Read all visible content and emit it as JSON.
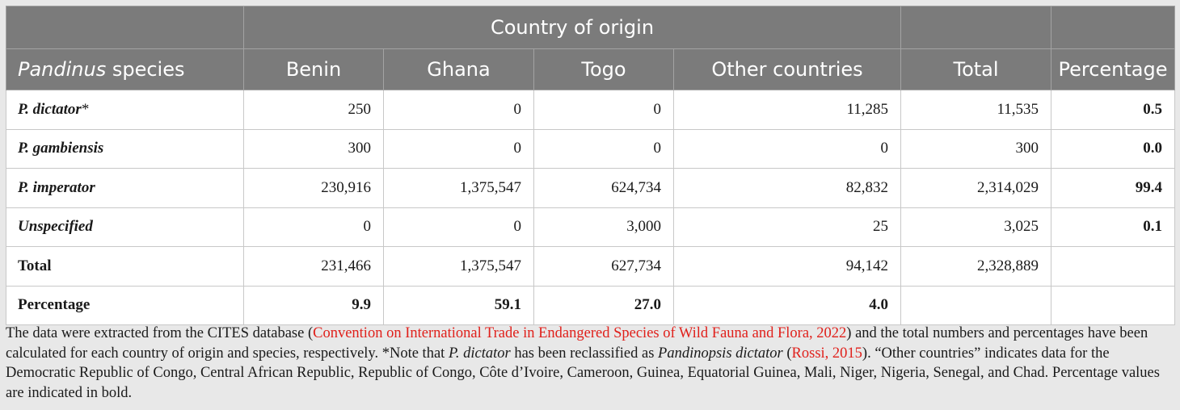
{
  "header": {
    "group_label": "Country of origin",
    "species_label_italic": "Pandinus",
    "species_label_rest": " species",
    "columns": [
      "Benin",
      "Ghana",
      "Togo",
      "Other countries",
      "Total",
      "Percentage"
    ]
  },
  "rows": [
    {
      "label": "P. dictator",
      "mark": "*",
      "italic": true,
      "values": [
        "250",
        "0",
        "0",
        "11,285",
        "11,535",
        "0.5"
      ]
    },
    {
      "label": "P. gambiensis",
      "mark": "",
      "italic": true,
      "values": [
        "300",
        "0",
        "0",
        "0",
        "300",
        "0.0"
      ]
    },
    {
      "label": "P. imperator",
      "mark": "",
      "italic": true,
      "values": [
        "230,916",
        "1,375,547",
        "624,734",
        "82,832",
        "2,314,029",
        "99.4"
      ]
    },
    {
      "label": "Unspecified",
      "mark": "",
      "italic": true,
      "values": [
        "0",
        "0",
        "3,000",
        "25",
        "3,025",
        "0.1"
      ]
    },
    {
      "label": "Total",
      "mark": "",
      "italic": false,
      "values": [
        "231,466",
        "1,375,547",
        "627,734",
        "94,142",
        "2,328,889",
        ""
      ]
    },
    {
      "label": "Percentage",
      "mark": "",
      "italic": false,
      "values": [
        "9.9",
        "59.1",
        "27.0",
        "4.0",
        "",
        ""
      ]
    }
  ],
  "footnote": {
    "p1": "The data were extracted from the CITES database (",
    "ref1": "Convention on International Trade in Endangered Species of Wild Fauna and Flora, 2022",
    "p2": ") and the total numbers and percentages have been calculated for each country of origin and species, respectively. *Note that ",
    "it1": "P. dictator",
    "p3": " has been reclassified as ",
    "it2": "Pandinopsis dictator",
    "p4": " (",
    "ref2": "Rossi, 2015",
    "p5": "). “Other countries” indicates data for the Democratic Republic of Congo, Central African Republic, Republic of Congo, Côte d’Ivoire, Cameroon, Guinea, Equatorial Guinea, Mali, Niger, Nigeria, Senegal, and Chad. Percentage values are indicated in bold."
  },
  "colors": {
    "header_bg": "#7b7b7b",
    "reference_link": "#e0201b"
  }
}
